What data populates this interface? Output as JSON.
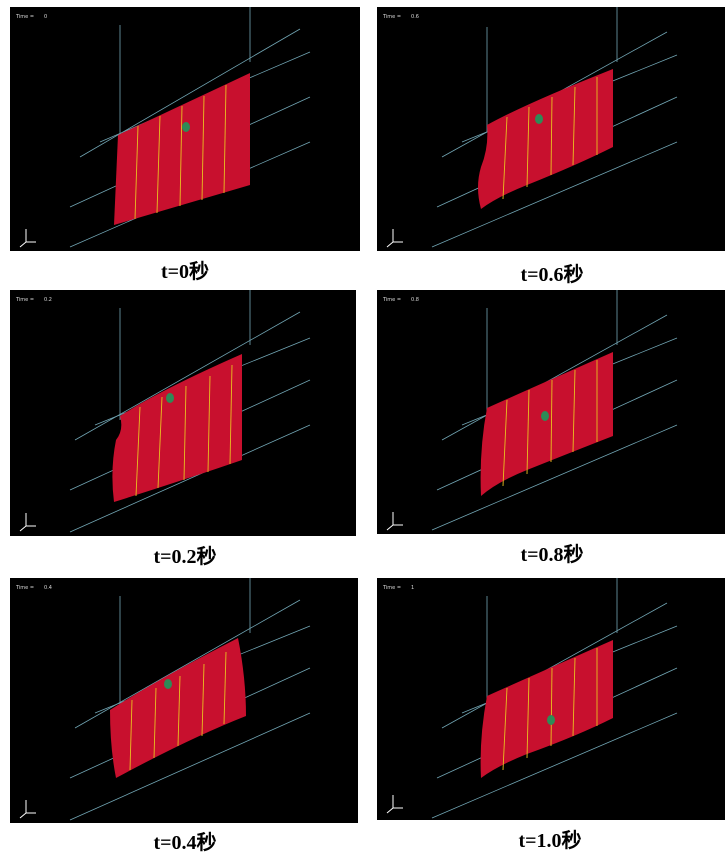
{
  "time_label": "Time =",
  "panels": [
    {
      "time_value": "0",
      "caption": "t=0秒"
    },
    {
      "time_value": "0.6",
      "caption": "t=0.6秒"
    },
    {
      "time_value": "0.2",
      "caption": "t=0.2秒"
    },
    {
      "time_value": "0.8",
      "caption": "t=0.8秒"
    },
    {
      "time_value": "0.4",
      "caption": "t=0.4秒"
    },
    {
      "time_value": "1",
      "caption": "t=1.0秒"
    }
  ],
  "colors": {
    "sheet": "#c8102e",
    "grid": "#7fb9c9",
    "stripe": "#e8c020",
    "marker": "#2e8b57",
    "background": "#000000"
  }
}
